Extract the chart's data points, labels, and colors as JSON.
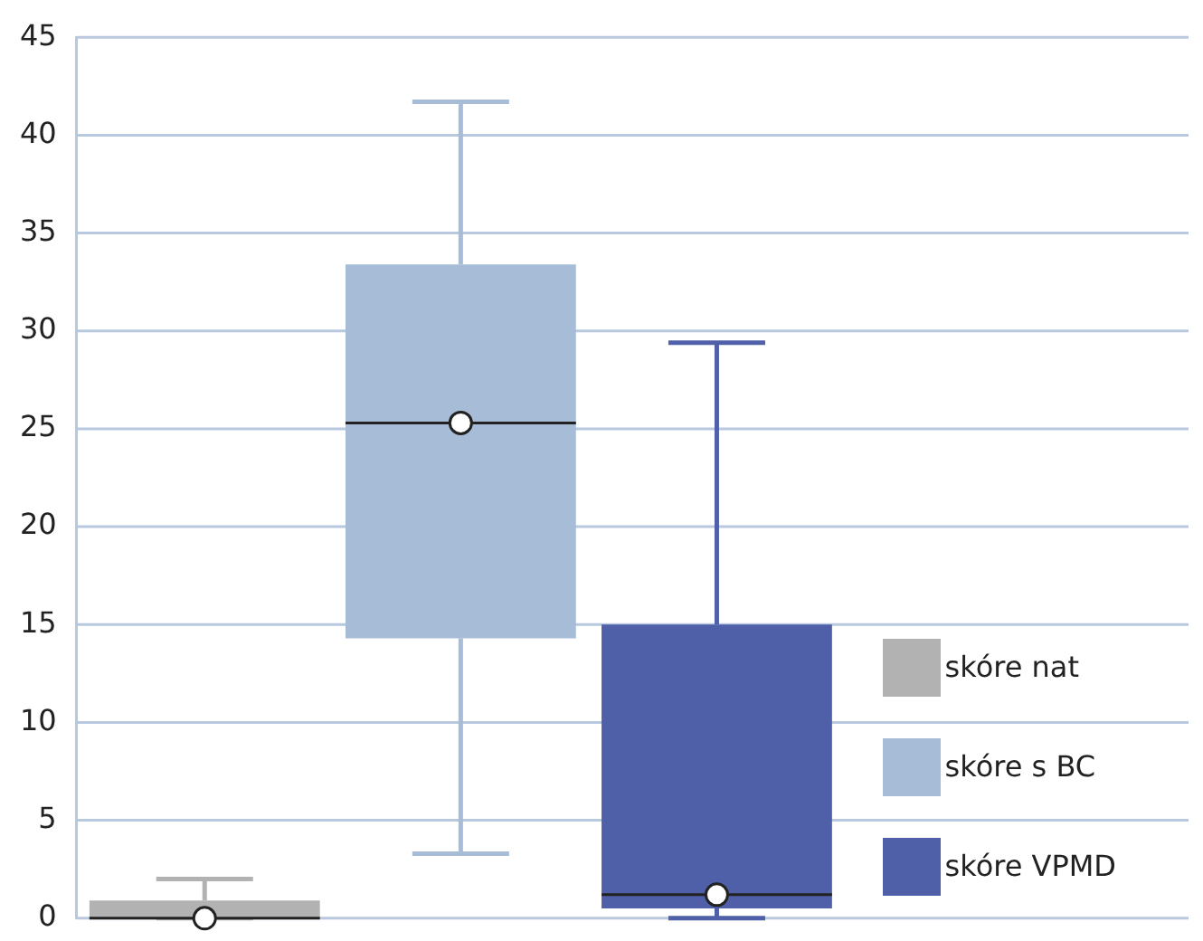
{
  "chart_data": {
    "type": "box",
    "categories": [
      null
    ],
    "series": [
      {
        "name": "skóre nat",
        "color": "#b2b2b2",
        "boxes": [
          {
            "low": 0,
            "q1": 0,
            "median": 0,
            "q3": 0.9,
            "high": 2,
            "mean": 0
          }
        ]
      },
      {
        "name": "skóre s BC",
        "color": "#a7bcd6",
        "boxes": [
          {
            "low": 3.3,
            "q1": 14.3,
            "median": 25.3,
            "q3": 33.4,
            "high": 41.7,
            "mean": 25.3
          }
        ]
      },
      {
        "name": "skóre VPMD",
        "color": "#4f5fa8",
        "boxes": [
          {
            "low": 0,
            "q1": 0.5,
            "median": 1.2,
            "q3": 15,
            "high": 29.4,
            "mean": 1.2
          }
        ]
      }
    ],
    "ylim": [
      0,
      45
    ],
    "yticks": [
      0,
      5,
      10,
      15,
      20,
      25,
      30,
      35,
      40,
      45
    ],
    "grid": "y",
    "legend": "bottom right"
  }
}
